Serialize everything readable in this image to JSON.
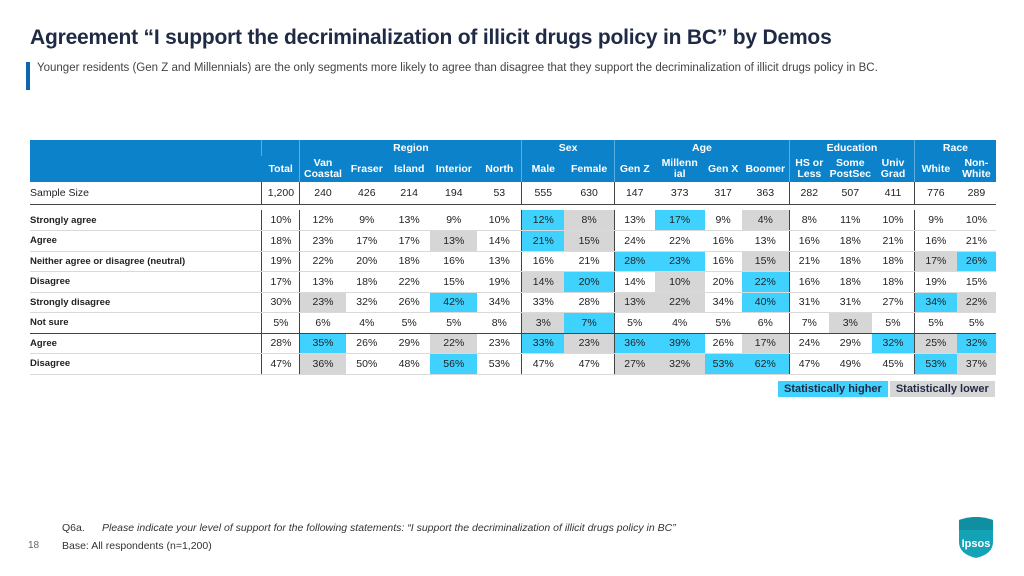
{
  "title": "Agreement “I support the decriminalization of illicit drugs policy in BC” by Demos",
  "subtitle": "Younger residents (Gen Z and Millennials) are the only segments more likely to agree than disagree that they support the decriminalization of illicit drugs policy in BC.",
  "colors": {
    "header": "#0b82c9",
    "higher": "#3fd2ff",
    "lower": "#d6d6d6",
    "accent": "#0b65b0"
  },
  "groups": [
    {
      "label": ""
    },
    {
      "label": ""
    },
    {
      "label": "Region"
    },
    {
      "label": "Sex"
    },
    {
      "label": "Age"
    },
    {
      "label": "Education"
    },
    {
      "label": "Race"
    }
  ],
  "columns": [
    "Total",
    "Van Coastal",
    "Fraser",
    "Island",
    "Interior",
    "North",
    "Male",
    "Female",
    "Gen Z",
    "Millennial",
    "Gen X",
    "Boomer",
    "HS or Less",
    "Some PostSec",
    "Univ Grad",
    "White",
    "Non-White"
  ],
  "column_display": [
    "Total",
    "Van\nCoastal",
    "Fraser",
    "Island",
    "Interior",
    "North",
    "Male",
    "Female",
    "Gen Z",
    "Millenn\nial",
    "Gen X",
    "Boomer",
    "HS or\nLess",
    "Some\nPostSec",
    "Univ\nGrad",
    "White",
    "Non-\nWhite"
  ],
  "sample": {
    "label": "Sample Size",
    "values": [
      "1,200",
      "240",
      "426",
      "214",
      "194",
      "53",
      "555",
      "630",
      "147",
      "373",
      "317",
      "363",
      "282",
      "507",
      "411",
      "776",
      "289"
    ]
  },
  "rows": [
    {
      "label": "Strongly agree",
      "values": [
        "10%",
        "12%",
        "9%",
        "13%",
        "9%",
        "10%",
        "12%",
        "8%",
        "13%",
        "17%",
        "9%",
        "4%",
        "8%",
        "11%",
        "10%",
        "9%",
        "10%"
      ],
      "flags": [
        "",
        "",
        "",
        "",
        "",
        "",
        "hi",
        "lo",
        "",
        "hi",
        "",
        "lo",
        "",
        "",
        "",
        "",
        ""
      ]
    },
    {
      "label": "Agree",
      "values": [
        "18%",
        "23%",
        "17%",
        "17%",
        "13%",
        "14%",
        "21%",
        "15%",
        "24%",
        "22%",
        "16%",
        "13%",
        "16%",
        "18%",
        "21%",
        "16%",
        "21%"
      ],
      "flags": [
        "",
        "",
        "",
        "",
        "lo",
        "",
        "hi",
        "lo",
        "",
        "",
        "",
        "",
        "",
        "",
        "",
        "",
        ""
      ]
    },
    {
      "label": "Neither agree or disagree (neutral)",
      "values": [
        "19%",
        "22%",
        "20%",
        "18%",
        "16%",
        "13%",
        "16%",
        "21%",
        "28%",
        "23%",
        "16%",
        "15%",
        "21%",
        "18%",
        "18%",
        "17%",
        "26%"
      ],
      "flags": [
        "",
        "",
        "",
        "",
        "",
        "",
        "",
        "",
        "hi",
        "hi",
        "",
        "lo",
        "",
        "",
        "",
        "lo",
        "hi"
      ]
    },
    {
      "label": "Disagree",
      "values": [
        "17%",
        "13%",
        "18%",
        "22%",
        "15%",
        "19%",
        "14%",
        "20%",
        "14%",
        "10%",
        "20%",
        "22%",
        "16%",
        "18%",
        "18%",
        "19%",
        "15%"
      ],
      "flags": [
        "",
        "",
        "",
        "",
        "",
        "",
        "lo",
        "hi",
        "",
        "lo",
        "",
        "hi",
        "",
        "",
        "",
        "",
        ""
      ]
    },
    {
      "label": "Strongly disagree",
      "values": [
        "30%",
        "23%",
        "32%",
        "26%",
        "42%",
        "34%",
        "33%",
        "28%",
        "13%",
        "22%",
        "34%",
        "40%",
        "31%",
        "31%",
        "27%",
        "34%",
        "22%"
      ],
      "flags": [
        "",
        "lo",
        "",
        "",
        "hi",
        "",
        "",
        "",
        "lo",
        "lo",
        "",
        "hi",
        "",
        "",
        "",
        "hi",
        "lo"
      ]
    },
    {
      "label": "Not sure",
      "values": [
        "5%",
        "6%",
        "4%",
        "5%",
        "5%",
        "8%",
        "3%",
        "7%",
        "5%",
        "4%",
        "5%",
        "6%",
        "7%",
        "3%",
        "5%",
        "5%",
        "5%"
      ],
      "flags": [
        "",
        "",
        "",
        "",
        "",
        "",
        "lo",
        "hi",
        "",
        "",
        "",
        "",
        "",
        "lo",
        "",
        "",
        ""
      ]
    },
    {
      "label": "Agree",
      "values": [
        "28%",
        "35%",
        "26%",
        "29%",
        "22%",
        "23%",
        "33%",
        "23%",
        "36%",
        "39%",
        "26%",
        "17%",
        "24%",
        "29%",
        "32%",
        "25%",
        "32%"
      ],
      "flags": [
        "",
        "hi",
        "",
        "",
        "lo",
        "",
        "hi",
        "lo",
        "hi",
        "hi",
        "",
        "lo",
        "",
        "",
        "hi",
        "lo",
        "hi"
      ]
    },
    {
      "label": "Disagree",
      "values": [
        "47%",
        "36%",
        "50%",
        "48%",
        "56%",
        "53%",
        "47%",
        "47%",
        "27%",
        "32%",
        "53%",
        "62%",
        "47%",
        "49%",
        "45%",
        "53%",
        "37%"
      ],
      "flags": [
        "",
        "lo",
        "",
        "",
        "hi",
        "",
        "",
        "",
        "lo",
        "lo",
        "hi",
        "hi",
        "",
        "",
        "",
        "hi",
        "lo"
      ]
    }
  ],
  "legend": {
    "higher": "Statistically higher",
    "lower": "Statistically lower"
  },
  "footer": {
    "qid": "Q6a.",
    "question": "Please indicate your level of support for the following statements: “I support the decriminalization of illicit drugs policy in BC”",
    "base": "Base: All respondents (n=1,200)",
    "page": "18",
    "logo_text": "Ipsos"
  }
}
